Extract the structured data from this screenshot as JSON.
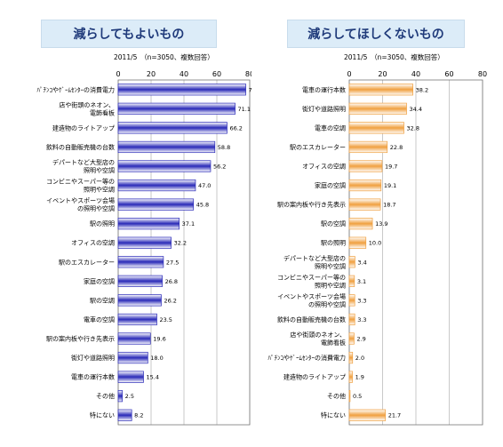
{
  "chart_data": [
    {
      "type": "bar",
      "orientation": "horizontal",
      "title": "減らしてもよいもの",
      "subtitle": "2011/5　（n=3050、複数回答）",
      "xlim": [
        0,
        80
      ],
      "ticks": [
        "0",
        "20",
        "40",
        "60",
        "80"
      ],
      "grid": true,
      "bar_color": "#2a2ab8",
      "categories": [
        "ﾊﾟﾁﾝｺやｹﾞｰﾑｾﾝﾀｰの消費電力",
        "店や街頭のネオン、\n電飾看板",
        "建造物のライトアップ",
        "飲料の自動販売機の台数",
        "デパートなど大型店の\n照明や空調",
        "コンビニやスーパー等の\n照明や空調",
        "イベントやスポーツ会場\nの照明や空調",
        "駅の照明",
        "オフィスの空調",
        "駅のエスカレーター",
        "家庭の空調",
        "駅の空調",
        "電車の空調",
        "駅の案内板や行き先表示",
        "街灯や道路照明",
        "電車の運行本数",
        "その他",
        "特にない"
      ],
      "values": [
        77.6,
        71.1,
        66.2,
        58.8,
        56.2,
        47.0,
        45.8,
        37.1,
        32.2,
        27.5,
        26.8,
        26.2,
        23.5,
        19.6,
        18.0,
        15.4,
        2.5,
        8.2
      ],
      "labels": [
        "77.6",
        "71.1",
        "66.2",
        "58.8",
        "56.2",
        "47.0",
        "45.8",
        "37.1",
        "32.2",
        "27.5",
        "26.8",
        "26.2",
        "23.5",
        "19.6",
        "18.0",
        "15.4",
        "2.5",
        "8.2"
      ]
    },
    {
      "type": "bar",
      "orientation": "horizontal",
      "title": "減らしてほしくないもの",
      "subtitle": "2011/5　（n=3050、複数回答）",
      "xlim": [
        0,
        80
      ],
      "ticks": [
        "0",
        "20",
        "40",
        "60",
        "80"
      ],
      "grid": true,
      "bar_color": "#f0a040",
      "categories": [
        "電車の運行本数",
        "街灯や道路照明",
        "電車の空調",
        "駅のエスカレーター",
        "オフィスの空調",
        "家庭の空調",
        "駅の案内板や行き先表示",
        "駅の空調",
        "駅の照明",
        "デパートなど大型店の\n照明や空調",
        "コンビニやスーパー等の\n照明や空調",
        "イベントやスポーツ会場\nの照明や空調",
        "飲料の自動販売機の台数",
        "店や街頭のネオン、\n電飾看板",
        "ﾊﾟﾁﾝｺやｹﾞｰﾑｾﾝﾀｰの消費電力",
        "建造物のライトアップ",
        "その他",
        "特にない"
      ],
      "values": [
        38.2,
        34.4,
        32.8,
        22.8,
        19.7,
        19.1,
        18.7,
        13.9,
        10.0,
        3.4,
        3.1,
        3.3,
        3.3,
        2.9,
        2.0,
        1.9,
        0.5,
        21.7
      ],
      "labels": [
        "38.2",
        "34.4",
        "32.8",
        "22.8",
        "19.7",
        "19.1",
        "18.7",
        "13.9",
        "10.0",
        "3.4",
        "3.1",
        "3.3",
        "3.3",
        "2.9",
        "2.0",
        "1.9",
        "0.5",
        "21.7"
      ]
    }
  ]
}
